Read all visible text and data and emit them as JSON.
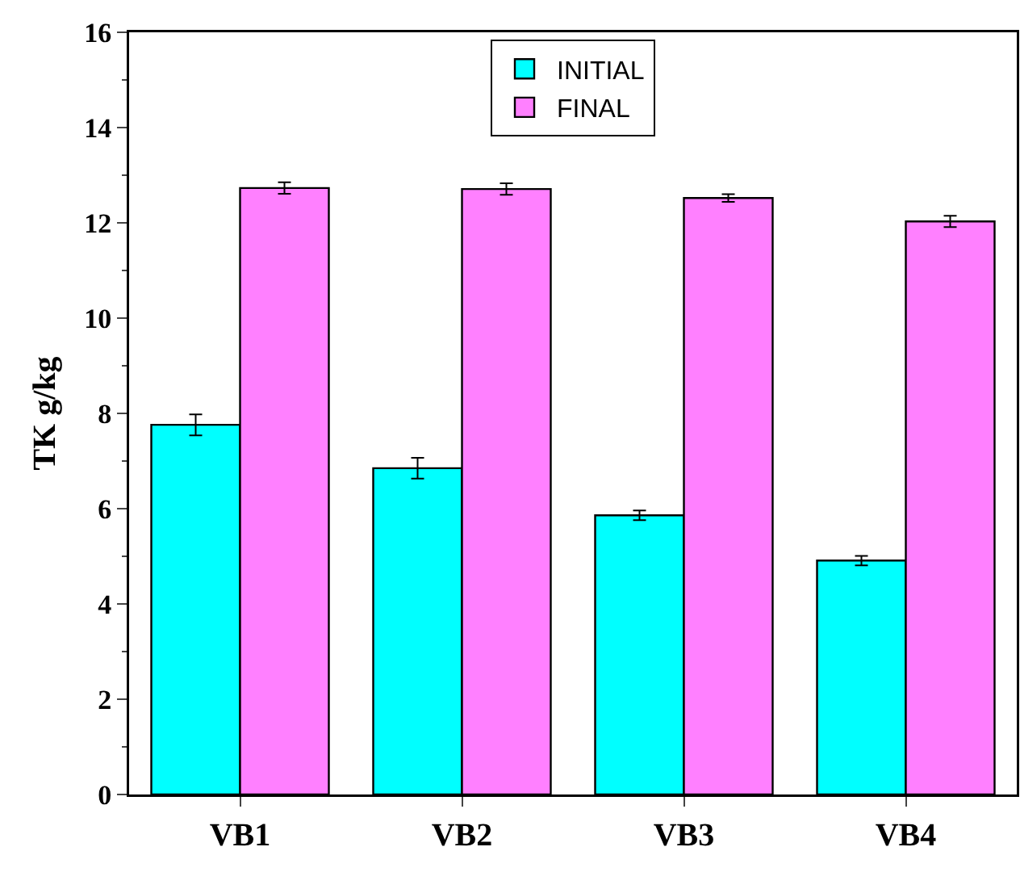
{
  "chart_data": {
    "type": "bar",
    "ylabel": "TK g/kg",
    "categories": [
      "VB1",
      "VB2",
      "VB3",
      "VB4"
    ],
    "series": [
      {
        "name": "INITIAL",
        "color": "#00ffff",
        "values": [
          7.76,
          6.85,
          5.86,
          4.91
        ],
        "errors": [
          0.22,
          0.22,
          0.1,
          0.1
        ]
      },
      {
        "name": "FINAL",
        "color": "#ff80ff",
        "values": [
          12.73,
          12.71,
          12.52,
          12.03
        ],
        "errors": [
          0.12,
          0.12,
          0.08,
          0.12
        ]
      }
    ],
    "ylim": [
      0,
      16
    ],
    "yticks": [
      0,
      2,
      4,
      6,
      8,
      10,
      12,
      14,
      16
    ],
    "grid": false,
    "legend": "top"
  }
}
